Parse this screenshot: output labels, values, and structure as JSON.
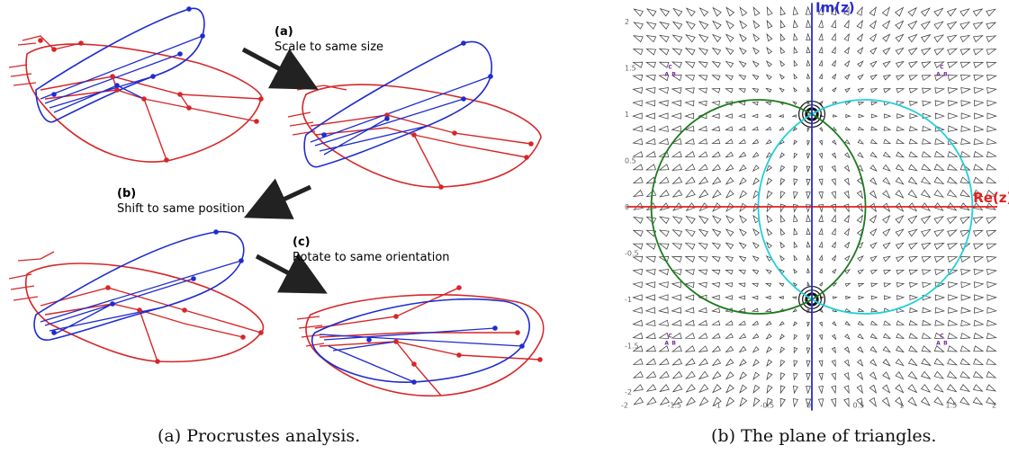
{
  "panel_a": {
    "caption": "(a)  Procrustes analysis.",
    "steps": [
      {
        "label": "(a)",
        "text": "Scale to same size"
      },
      {
        "label": "(b)",
        "text": "Shift to same position"
      },
      {
        "label": "(c)",
        "text": "Rotate to same orientation"
      }
    ],
    "colors": {
      "wing_red": "#d62728",
      "wing_blue": "#1f2ccf",
      "arrow": "#222222"
    }
  },
  "panel_b": {
    "caption": "(b)  The plane of triangles.",
    "axis_labels": {
      "x": "Re(z)",
      "y": "Im(z)"
    },
    "x_ticks": [
      "-2",
      "-1.5",
      "-1",
      "-0.5",
      "0",
      "0.5",
      "1",
      "1.5",
      "2"
    ],
    "y_ticks": [
      "2",
      "1.5",
      "1",
      "0.5",
      "0",
      "-0.5",
      "-1",
      "-1.5",
      "-2"
    ],
    "corner_marks": [
      "C",
      "A",
      "B"
    ],
    "colors": {
      "real_axis": "#e02020",
      "imag_axis": "#2a2ad0",
      "circle_left": "#1e7a1e",
      "circle_right": "#22d0d8",
      "triangles": "#333333",
      "ticks": "#666666",
      "corner_marks": "#7a2a9a"
    }
  }
}
